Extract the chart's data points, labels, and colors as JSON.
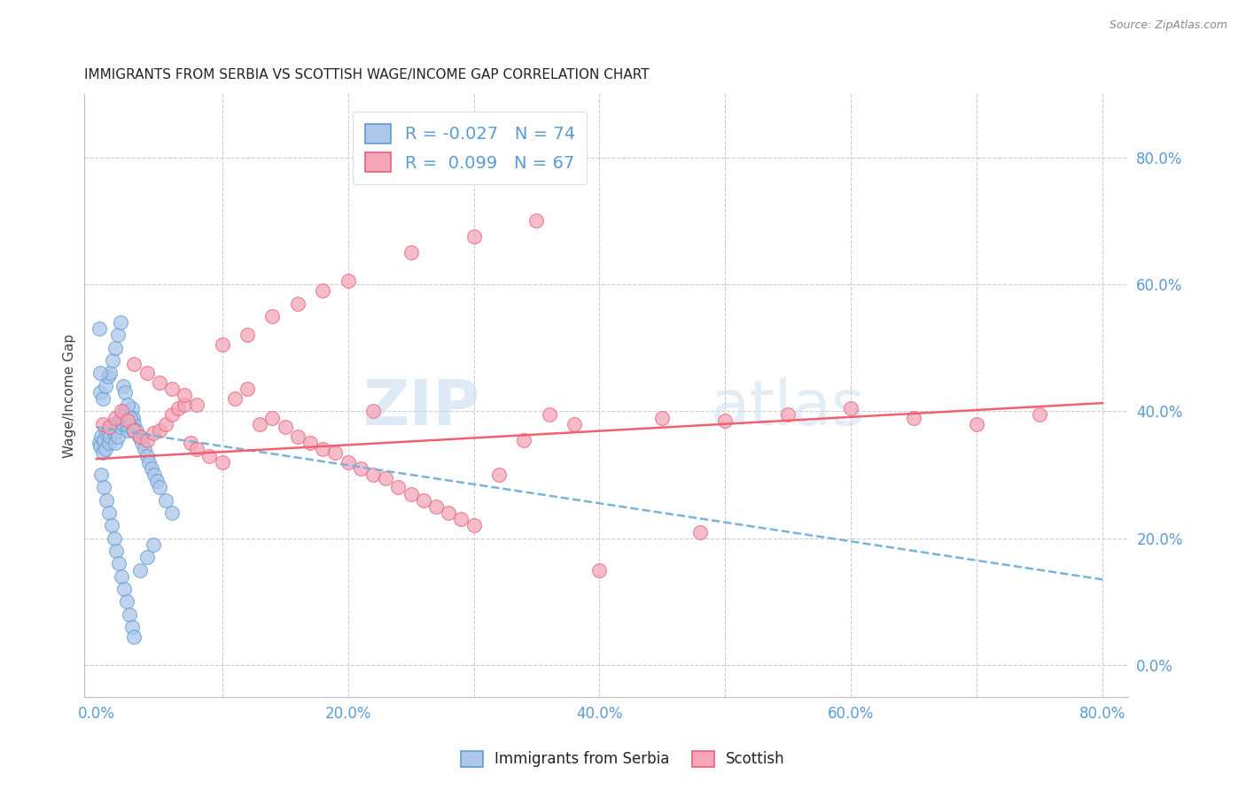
{
  "title": "IMMIGRANTS FROM SERBIA VS SCOTTISH WAGE/INCOME GAP CORRELATION CHART",
  "source": "Source: ZipAtlas.com",
  "ylabel": "Wage/Income Gap",
  "color_blue": "#aec6e8",
  "color_pink": "#f4a6b8",
  "edge_blue": "#5b9bd5",
  "edge_pink": "#e8607a",
  "line_blue_color": "#7ab3d9",
  "line_pink_color": "#f06070",
  "title_fontsize": 11,
  "tick_color": "#5b9bd5",
  "grid_color": "#cccccc",
  "watermark_color": "#c8dcef",
  "serbia_x": [
    0.2,
    0.3,
    0.4,
    0.5,
    0.6,
    0.7,
    0.8,
    0.9,
    1.0,
    1.1,
    1.2,
    1.3,
    1.4,
    1.5,
    1.6,
    1.7,
    1.8,
    1.9,
    2.0,
    2.1,
    2.2,
    2.3,
    2.4,
    2.5,
    2.6,
    2.7,
    2.8,
    2.9,
    3.0,
    3.2,
    3.4,
    3.6,
    3.8,
    4.0,
    4.2,
    4.4,
    4.6,
    4.8,
    5.0,
    5.5,
    6.0,
    0.3,
    0.5,
    0.7,
    0.9,
    1.1,
    1.3,
    1.5,
    1.7,
    1.9,
    2.1,
    2.3,
    2.5,
    2.7,
    2.9,
    0.4,
    0.6,
    0.8,
    1.0,
    1.2,
    1.4,
    1.6,
    1.8,
    2.0,
    2.2,
    2.4,
    2.6,
    2.8,
    3.0,
    3.5,
    4.0,
    4.5,
    0.2,
    0.3
  ],
  "serbia_y": [
    35.0,
    34.5,
    36.0,
    33.5,
    35.5,
    34.0,
    36.5,
    37.0,
    35.0,
    36.0,
    37.5,
    38.0,
    36.5,
    35.0,
    37.0,
    36.0,
    38.5,
    37.5,
    39.0,
    38.0,
    40.0,
    39.5,
    38.0,
    37.0,
    39.0,
    38.5,
    40.5,
    39.0,
    38.0,
    37.0,
    36.0,
    35.0,
    34.0,
    33.0,
    32.0,
    31.0,
    30.0,
    29.0,
    28.0,
    26.0,
    24.0,
    43.0,
    42.0,
    44.0,
    45.5,
    46.0,
    48.0,
    50.0,
    52.0,
    54.0,
    44.0,
    43.0,
    41.0,
    39.0,
    37.0,
    30.0,
    28.0,
    26.0,
    24.0,
    22.0,
    20.0,
    18.0,
    16.0,
    14.0,
    12.0,
    10.0,
    8.0,
    6.0,
    4.5,
    15.0,
    17.0,
    19.0,
    53.0,
    46.0
  ],
  "scottish_x": [
    0.5,
    1.0,
    1.5,
    2.0,
    2.5,
    3.0,
    3.5,
    4.0,
    4.5,
    5.0,
    5.5,
    6.0,
    6.5,
    7.0,
    7.5,
    8.0,
    9.0,
    10.0,
    11.0,
    12.0,
    13.0,
    14.0,
    15.0,
    16.0,
    17.0,
    18.0,
    19.0,
    20.0,
    21.0,
    22.0,
    23.0,
    24.0,
    25.0,
    26.0,
    27.0,
    28.0,
    29.0,
    30.0,
    32.0,
    34.0,
    36.0,
    38.0,
    40.0,
    45.0,
    50.0,
    55.0,
    60.0,
    65.0,
    70.0,
    75.0,
    3.0,
    4.0,
    5.0,
    6.0,
    7.0,
    8.0,
    10.0,
    12.0,
    14.0,
    16.0,
    18.0,
    20.0,
    25.0,
    30.0,
    35.0,
    48.0,
    22.0
  ],
  "scottish_y": [
    38.0,
    37.5,
    39.0,
    40.0,
    38.5,
    37.0,
    36.0,
    35.5,
    36.5,
    37.0,
    38.0,
    39.5,
    40.5,
    41.0,
    35.0,
    34.0,
    33.0,
    32.0,
    42.0,
    43.5,
    38.0,
    39.0,
    37.5,
    36.0,
    35.0,
    34.0,
    33.5,
    32.0,
    31.0,
    30.0,
    29.5,
    28.0,
    27.0,
    26.0,
    25.0,
    24.0,
    23.0,
    22.0,
    30.0,
    35.5,
    39.5,
    38.0,
    15.0,
    39.0,
    38.5,
    39.5,
    40.5,
    39.0,
    38.0,
    39.5,
    47.5,
    46.0,
    44.5,
    43.5,
    42.5,
    41.0,
    50.5,
    52.0,
    55.0,
    57.0,
    59.0,
    60.5,
    65.0,
    67.5,
    70.0,
    21.0,
    40.0
  ],
  "xlim": [
    -1.0,
    82.0
  ],
  "ylim": [
    -5.0,
    90.0
  ],
  "xtick_vals": [
    0,
    10,
    20,
    30,
    40,
    50,
    60,
    70,
    80
  ],
  "xtick_labels": [
    "0.0%",
    "",
    "20.0%",
    "",
    "40.0%",
    "",
    "60.0%",
    "",
    "80.0%"
  ],
  "ytick_vals": [
    0,
    20,
    40,
    60,
    80
  ],
  "ytick_labels": [
    "0.0%",
    "20.0%",
    "40.0%",
    "60.0%",
    "80.0%"
  ],
  "blue_trend_x": [
    0,
    80
  ],
  "blue_trend_y0": 37.5,
  "blue_slope": -0.3,
  "pink_trend_y0": 32.5,
  "pink_slope": 0.11
}
